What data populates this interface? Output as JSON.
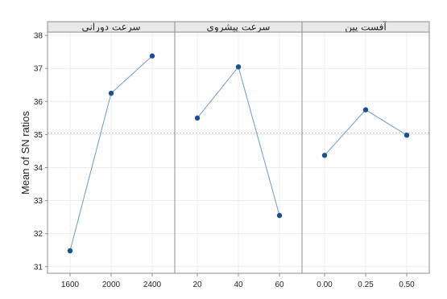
{
  "chart_data": {
    "type": "line",
    "ylabel": "Mean of SN ratios",
    "ylim": [
      30.8,
      38.1
    ],
    "yticks": [
      "31",
      "32",
      "33",
      "34",
      "35",
      "36",
      "37",
      "38"
    ],
    "reference_line": 35.05,
    "grid": true,
    "panels": [
      {
        "title": "سرعت دورانی",
        "categories": [
          "1600",
          "2000",
          "2400"
        ],
        "values": [
          31.48,
          36.25,
          37.38
        ]
      },
      {
        "title": "سرعت پیشروی",
        "categories": [
          "20",
          "40",
          "60"
        ],
        "values": [
          35.5,
          37.05,
          32.55
        ]
      },
      {
        "title": "آفست پین",
        "categories": [
          "0.00",
          "0.25",
          "0.50"
        ],
        "values": [
          34.37,
          35.75,
          34.98
        ]
      }
    ]
  },
  "colors": {
    "marker": "#1f4e89",
    "line": "#6a9bc9",
    "frame": "#8c8c8c",
    "strip": "#e8e8e8",
    "grid": "#ececec",
    "reference": "#b5b5b5"
  }
}
